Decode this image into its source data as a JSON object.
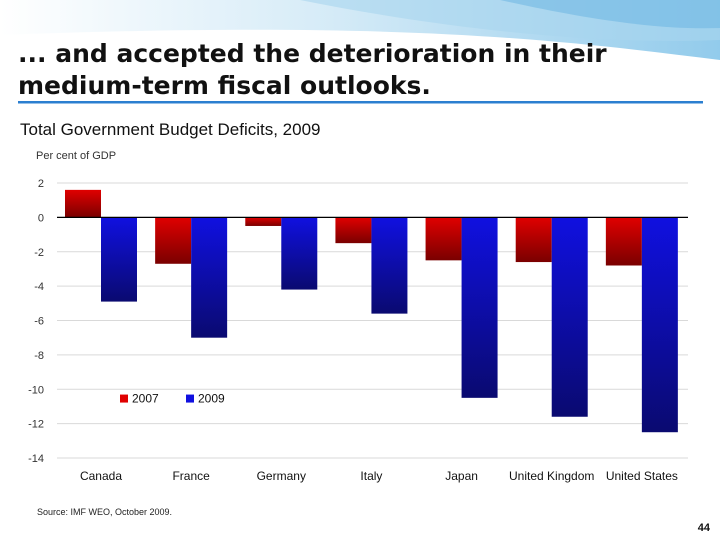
{
  "slide": {
    "title": "... and accepted the deterioration in their\nmedium-term fiscal outlooks.",
    "page_number": "44",
    "source": "Source: IMF WEO, October 2009."
  },
  "colors": {
    "series_2007": "#e00000",
    "series_2009": "#1010e0",
    "banner_light": "#d6ecf7",
    "banner_mid": "#9fd0ec",
    "underline": "#2b7fd0"
  },
  "chart_data": {
    "type": "bar",
    "title": "Total Government Budget Deficits, 2009",
    "ylabel": "Per cent of GDP",
    "xlabel": "",
    "categories": [
      "Canada",
      "France",
      "Germany",
      "Italy",
      "Japan",
      "United Kingdom",
      "United States"
    ],
    "series": [
      {
        "name": "2007",
        "color": "#e00000",
        "values": [
          1.6,
          -2.7,
          -0.5,
          -1.5,
          -2.5,
          -2.6,
          -2.8
        ]
      },
      {
        "name": "2009",
        "color": "#1010e0",
        "values": [
          -4.9,
          -7.0,
          -4.2,
          -5.6,
          -10.5,
          -11.6,
          -12.5
        ]
      }
    ],
    "ylim": [
      -14,
      2
    ],
    "yticks": [
      2,
      0,
      -2,
      -4,
      -6,
      -8,
      -10,
      -12,
      -14
    ],
    "grid": true,
    "legend": "inside-lower-left"
  }
}
